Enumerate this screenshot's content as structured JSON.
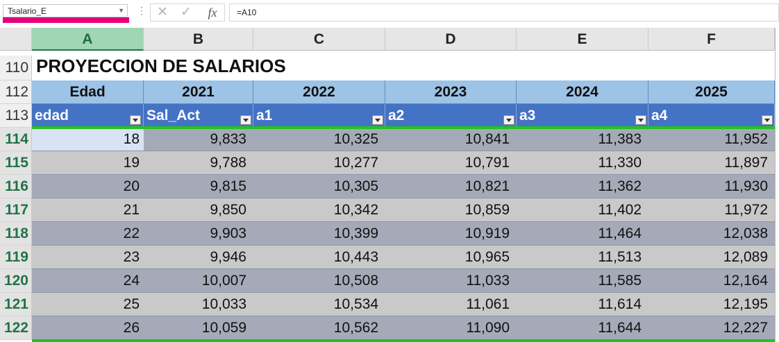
{
  "formula_bar": {
    "name_box": "Tsalario_E",
    "formula": "=A10"
  },
  "columns": [
    "A",
    "B",
    "C",
    "D",
    "E",
    "F"
  ],
  "rows": [
    "110",
    "112",
    "113",
    "114",
    "115",
    "116",
    "117",
    "118",
    "119",
    "120",
    "121",
    "122"
  ],
  "sheet": {
    "title": "PROYECCION DE SALARIOS",
    "header_row_112": [
      "Edad",
      "2021",
      "2022",
      "2023",
      "2024",
      "2025"
    ],
    "header_row_113": [
      "edad",
      "Sal_Act",
      "a1",
      "a2",
      "a3",
      "a4"
    ],
    "data": [
      [
        "18",
        "9,833",
        "10,325",
        "10,841",
        "11,383",
        "11,952"
      ],
      [
        "19",
        "9,788",
        "10,277",
        "10,791",
        "11,330",
        "11,897"
      ],
      [
        "20",
        "9,815",
        "10,305",
        "10,821",
        "11,362",
        "11,930"
      ],
      [
        "21",
        "9,850",
        "10,342",
        "10,859",
        "11,402",
        "11,972"
      ],
      [
        "22",
        "9,903",
        "10,399",
        "10,919",
        "11,464",
        "12,038"
      ],
      [
        "23",
        "9,946",
        "10,443",
        "10,965",
        "11,513",
        "12,089"
      ],
      [
        "24",
        "10,007",
        "10,508",
        "11,033",
        "11,585",
        "12,164"
      ],
      [
        "25",
        "10,033",
        "10,534",
        "11,061",
        "11,614",
        "12,195"
      ],
      [
        "26",
        "10,059",
        "10,562",
        "11,090",
        "11,644",
        "12,227"
      ]
    ]
  },
  "colors": {
    "accent_magenta": "#e6007e",
    "selection_green": "#22c31e",
    "header_blue": "#4472c4",
    "header_light_blue": "#9dc3e6"
  },
  "icons": [
    "cancel-icon",
    "enter-icon",
    "function-icon",
    "dropdown-arrow-icon",
    "filter-dropdown-icon"
  ]
}
